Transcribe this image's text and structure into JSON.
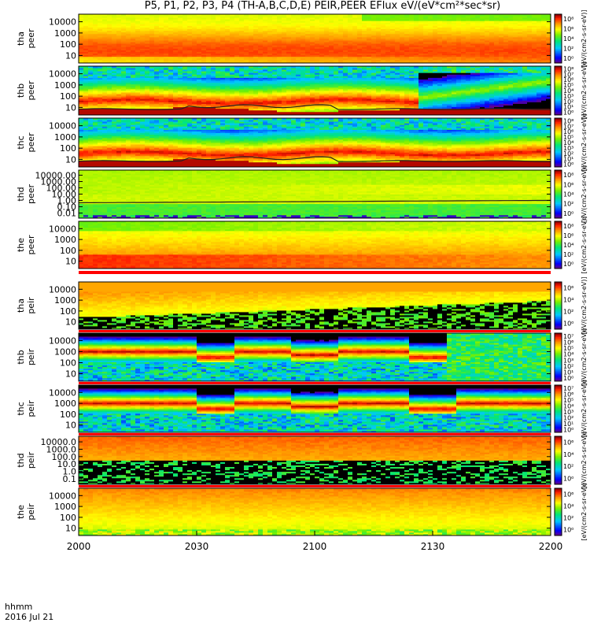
{
  "title": "P5, P1, P2, P3, P4 (TH-A,B,C,D,E) PEIR,PEER EFlux eV/(eV*cm²*sec*sr)",
  "time_axis": {
    "ticks": [
      "2000",
      "2030",
      "2100",
      "2130",
      "2200"
    ],
    "label_line1": "hhmm",
    "label_line2": "2016 Jul 21"
  },
  "colorbar_label": "[eV/(cm2-s-sr-eV)]",
  "chart_data": {
    "type": "heatmap",
    "x_range_minutes": [
      0,
      120
    ],
    "panels": [
      {
        "probe": "tha",
        "species": "peer",
        "yticks": [
          "10",
          "100",
          "1000",
          "10000"
        ],
        "cbar_ticks": [
          "10⁰",
          "10²",
          "10⁴",
          "10⁶",
          "10⁸"
        ],
        "pattern": "elec_hot"
      },
      {
        "probe": "thb",
        "species": "peer",
        "yticks": [
          "10",
          "100",
          "1000",
          "10000"
        ],
        "cbar_ticks": [
          "10⁰",
          "10¹",
          "10²",
          "10³",
          "10⁴",
          "10⁵",
          "10⁶",
          "10⁷",
          "10⁸"
        ],
        "pattern": "elec_low",
        "line": true
      },
      {
        "probe": "thc",
        "species": "peer",
        "yticks": [
          "10",
          "100",
          "1000",
          "10000"
        ],
        "cbar_ticks": [
          "10⁰",
          "10¹",
          "10²",
          "10³",
          "10⁴",
          "10⁵",
          "10⁶",
          "10⁷",
          "10⁸"
        ],
        "pattern": "elec_low2",
        "line": true
      },
      {
        "probe": "thd",
        "species": "peer",
        "yticks": [
          "0.01",
          "0.10",
          "1.00",
          "10.00",
          "100.00",
          "1000.00",
          "10000.00"
        ],
        "cbar_ticks": [
          "10⁰",
          "10²",
          "10⁴",
          "10⁶",
          "10⁸"
        ],
        "pattern": "elec_d",
        "line": true
      },
      {
        "probe": "the",
        "species": "peer",
        "yticks": [
          "10",
          "100",
          "1000",
          "10000"
        ],
        "cbar_ticks": [
          "10⁰",
          "10²",
          "10⁴",
          "10⁶",
          "10⁸"
        ],
        "pattern": "elec_hot2"
      },
      {
        "probe": "tha",
        "species": "peir",
        "yticks": [
          "10",
          "100",
          "1000",
          "10000"
        ],
        "cbar_ticks": [
          "10⁰",
          "10²",
          "10⁴",
          "10⁶"
        ],
        "pattern": "ion_a"
      },
      {
        "probe": "thb",
        "species": "peir",
        "yticks": [
          "10",
          "100",
          "1000",
          "10000"
        ],
        "cbar_ticks": [
          "10⁰",
          "10¹",
          "10²",
          "10³",
          "10⁴",
          "10⁵",
          "10⁶",
          "10⁷"
        ],
        "pattern": "ion_band"
      },
      {
        "probe": "thc",
        "species": "peir",
        "yticks": [
          "10",
          "100",
          "1000",
          "10000"
        ],
        "cbar_ticks": [
          "10⁰",
          "10¹",
          "10²",
          "10³",
          "10⁴",
          "10⁵",
          "10⁶",
          "10⁷"
        ],
        "pattern": "ion_band2"
      },
      {
        "probe": "thd",
        "species": "peir",
        "yticks": [
          "0.1",
          "1.0",
          "10.0",
          "100.0",
          "1000.0",
          "10000.0"
        ],
        "cbar_ticks": [
          "10⁰",
          "10²",
          "10⁴",
          "10⁶"
        ],
        "pattern": "ion_d"
      },
      {
        "probe": "the",
        "species": "peir",
        "yticks": [
          "10",
          "100",
          "1000",
          "10000"
        ],
        "cbar_ticks": [
          "10⁰",
          "10²",
          "10⁴",
          "10⁶"
        ],
        "pattern": "ion_e"
      }
    ]
  }
}
